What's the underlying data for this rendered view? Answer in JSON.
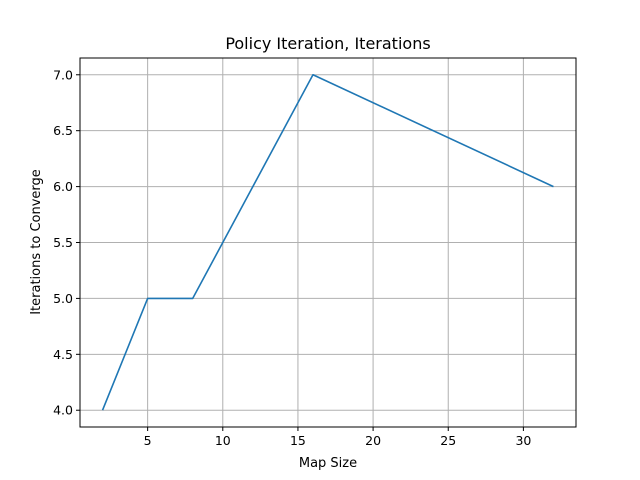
{
  "chart_data": {
    "type": "line",
    "title": "Policy Iteration, Iterations",
    "xlabel": "Map Size",
    "ylabel": "Iterations to Converge",
    "xlim": [
      0.5,
      33.5
    ],
    "ylim": [
      3.85,
      7.15
    ],
    "xticks": [
      5,
      10,
      15,
      20,
      25,
      30
    ],
    "xtick_labels": [
      "5",
      "10",
      "15",
      "20",
      "25",
      "30"
    ],
    "yticks": [
      4.0,
      4.5,
      5.0,
      5.5,
      6.0,
      6.5,
      7.0
    ],
    "ytick_labels": [
      "4.0",
      "4.5",
      "5.0",
      "5.5",
      "6.0",
      "6.5",
      "7.0"
    ],
    "grid": true,
    "series": [
      {
        "color": "#1f77b4",
        "x": [
          2,
          5,
          8,
          16,
          32
        ],
        "y": [
          4,
          5,
          5,
          7,
          6
        ]
      }
    ]
  }
}
